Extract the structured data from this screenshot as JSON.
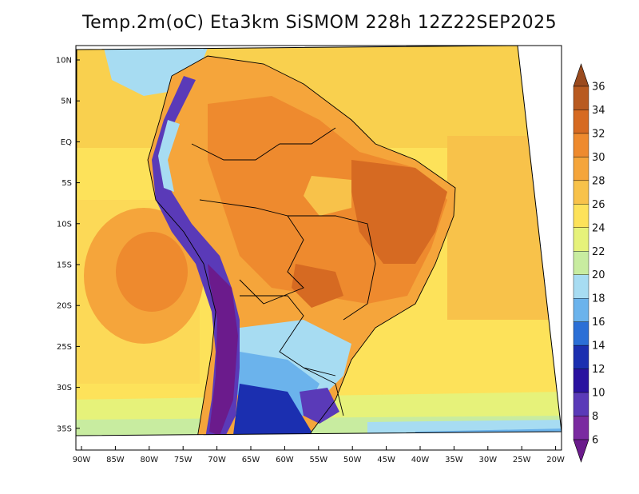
{
  "title": "Temp.2m(oC) Eta3km SiSMOM 228h 12Z22SEP2025",
  "lat_labels": [
    "10N",
    "5N",
    "EQ",
    "5S",
    "10S",
    "15S",
    "20S",
    "25S",
    "30S",
    "35S"
  ],
  "lon_labels": [
    "90W",
    "85W",
    "80W",
    "75W",
    "70W",
    "65W",
    "60W",
    "55W",
    "50W",
    "45W",
    "40W",
    "35W",
    "30W",
    "25W",
    "20W"
  ],
  "colorbar": {
    "labels": [
      "36",
      "34",
      "32",
      "30",
      "28",
      "26",
      "24",
      "22",
      "20",
      "18",
      "16",
      "14",
      "12",
      "10",
      "8",
      "6"
    ],
    "colors": [
      "#9a4a1e",
      "#b85a20",
      "#d66a22",
      "#ee8a2e",
      "#f5a53b",
      "#f8c24a",
      "#fde25a",
      "#e6f27a",
      "#c8eca0",
      "#a7dcf2",
      "#6bb3ec",
      "#2b6fd6",
      "#1b2fb0",
      "#2a12a0",
      "#5a3ab8",
      "#7a2aa0",
      "#6b1b8c"
    ]
  },
  "colors": {
    "ocean_warm": "#f6b445",
    "ocean_mild": "#f8d14f",
    "ocean_cool": "#fde25a",
    "ocean_cold": "#a7dcf2",
    "land_hot": "#ee8a2e",
    "land_very_hot": "#d66a22",
    "andes": "#6b1b8c",
    "south_cold": "#2a12a0"
  }
}
